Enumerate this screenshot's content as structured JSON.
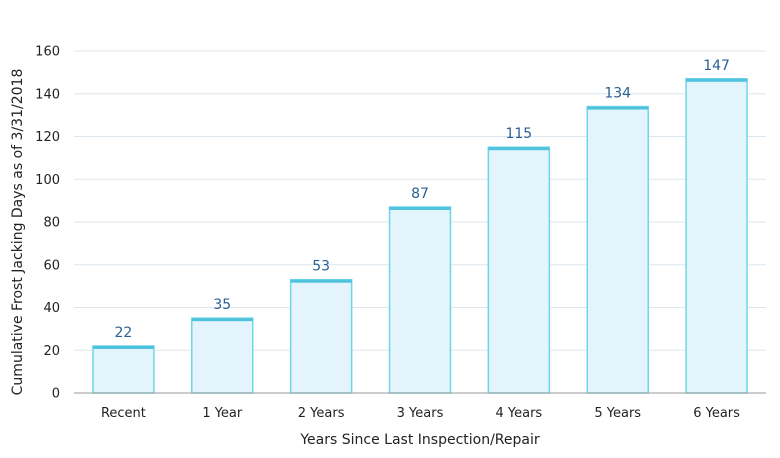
{
  "chart_data": {
    "type": "bar",
    "title": "",
    "xlabel": "Years Since Last Inspection/Repair",
    "ylabel": "Cumulative Frost Jacking Days as of 3/31/2018",
    "categories": [
      "Recent",
      "1 Year",
      "2 Years",
      "3 Years",
      "4 Years",
      "5 Years",
      "6 Years"
    ],
    "values": [
      22,
      35,
      53,
      87,
      115,
      134,
      147
    ],
    "value_labels": [
      "22",
      "35",
      "53",
      "87",
      "115",
      "134",
      "147"
    ],
    "ylim": [
      0,
      160
    ],
    "yticks": [
      0,
      20,
      40,
      60,
      80,
      100,
      120,
      140,
      160
    ],
    "ytick_labels": [
      "0",
      "20",
      "40",
      "60",
      "80",
      "100",
      "120",
      "140",
      "160"
    ],
    "grid": true,
    "legend": "none",
    "colors": {
      "bar_fill": "#e3f4fc",
      "bar_stroke": "#6fd6e8",
      "bar_top": "#4fc3dd",
      "value_label": "#2a5f93",
      "grid": "#dde7ef"
    }
  }
}
